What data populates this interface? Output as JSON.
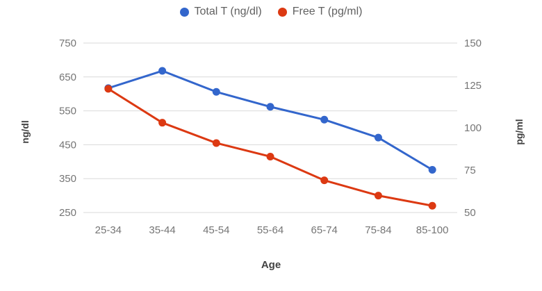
{
  "legend": {
    "items": [
      {
        "label": "Total T (ng/dl)",
        "color": "#3366CC"
      },
      {
        "label": "Free T (pg/ml)",
        "color": "#DC3912"
      }
    ]
  },
  "axes": {
    "left_title": "ng/dl",
    "right_title": "pg/ml",
    "x_title": "Age"
  },
  "colors": {
    "series_total": "#3366CC",
    "series_free": "#DC3912",
    "gridline": "#d9d9d9",
    "tick_text": "#757575",
    "axis_title_text": "#424242"
  },
  "chart_data": {
    "type": "line",
    "title": "",
    "xlabel": "Age",
    "categories": [
      "25-34",
      "35-44",
      "45-54",
      "55-64",
      "65-74",
      "75-84",
      "85-100"
    ],
    "series": [
      {
        "name": "Total T (ng/dl)",
        "axis": "left",
        "color": "#3366CC",
        "values": [
          617,
          668,
          606,
          562,
          524,
          471,
          376
        ]
      },
      {
        "name": "Free T (pg/ml)",
        "axis": "right",
        "color": "#DC3912",
        "values": [
          123,
          103,
          91,
          83,
          69,
          60,
          54
        ]
      }
    ],
    "left_axis": {
      "title": "ng/dl",
      "range": [
        250,
        750
      ],
      "ticks": [
        250,
        350,
        450,
        550,
        650,
        750
      ]
    },
    "right_axis": {
      "title": "pg/ml",
      "range": [
        50,
        150
      ],
      "ticks": [
        50,
        75,
        100,
        125,
        150
      ]
    },
    "grid": true,
    "legend_position": "top",
    "markers": "circle"
  }
}
